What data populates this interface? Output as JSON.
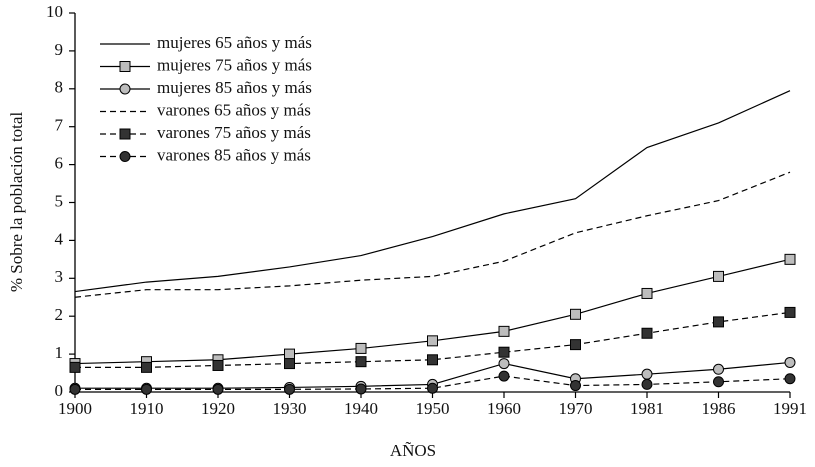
{
  "chart_data": {
    "type": "line",
    "x_label": "AÑOS",
    "y_label": "% Sobre la población total",
    "categories": [
      "1900",
      "1910",
      "1920",
      "1930",
      "1940",
      "1950",
      "1960",
      "1970",
      "1981",
      "1986",
      "1991"
    ],
    "ylim": [
      0,
      10
    ],
    "yticks": [
      0,
      1,
      2,
      3,
      4,
      5,
      6,
      7,
      8,
      9,
      10
    ],
    "legend": "upper left",
    "series": [
      {
        "name": "mujeres 65 años y más",
        "color": "#000000",
        "dash": false,
        "marker": "none",
        "marker_fill": "#000000",
        "values": [
          2.65,
          2.9,
          3.05,
          3.3,
          3.6,
          4.1,
          4.7,
          5.1,
          6.45,
          7.1,
          7.95
        ]
      },
      {
        "name": "mujeres 75 años y más",
        "color": "#000000",
        "dash": false,
        "marker": "square",
        "marker_fill": "#bdbdbd",
        "values": [
          0.75,
          0.8,
          0.85,
          1.0,
          1.15,
          1.35,
          1.6,
          2.05,
          2.6,
          3.05,
          3.5
        ]
      },
      {
        "name": "mujeres 85 años y más",
        "color": "#000000",
        "dash": false,
        "marker": "circle",
        "marker_fill": "#bdbdbd",
        "values": [
          0.1,
          0.1,
          0.1,
          0.12,
          0.15,
          0.2,
          0.75,
          0.35,
          0.47,
          0.6,
          0.78
        ]
      },
      {
        "name": "varones 65 años y más",
        "color": "#000000",
        "dash": true,
        "marker": "none",
        "marker_fill": "#000000",
        "values": [
          2.5,
          2.7,
          2.7,
          2.8,
          2.95,
          3.05,
          3.45,
          4.2,
          4.65,
          5.05,
          5.8
        ]
      },
      {
        "name": "varones 75 años y más",
        "color": "#000000",
        "dash": true,
        "marker": "square",
        "marker_fill": "#333333",
        "values": [
          0.65,
          0.65,
          0.7,
          0.75,
          0.8,
          0.85,
          1.05,
          1.25,
          1.55,
          1.85,
          2.1
        ]
      },
      {
        "name": "varones 85 años y más",
        "color": "#000000",
        "dash": true,
        "marker": "circle",
        "marker_fill": "#333333",
        "values": [
          0.07,
          0.07,
          0.07,
          0.07,
          0.08,
          0.1,
          0.42,
          0.17,
          0.2,
          0.27,
          0.35
        ]
      }
    ]
  }
}
